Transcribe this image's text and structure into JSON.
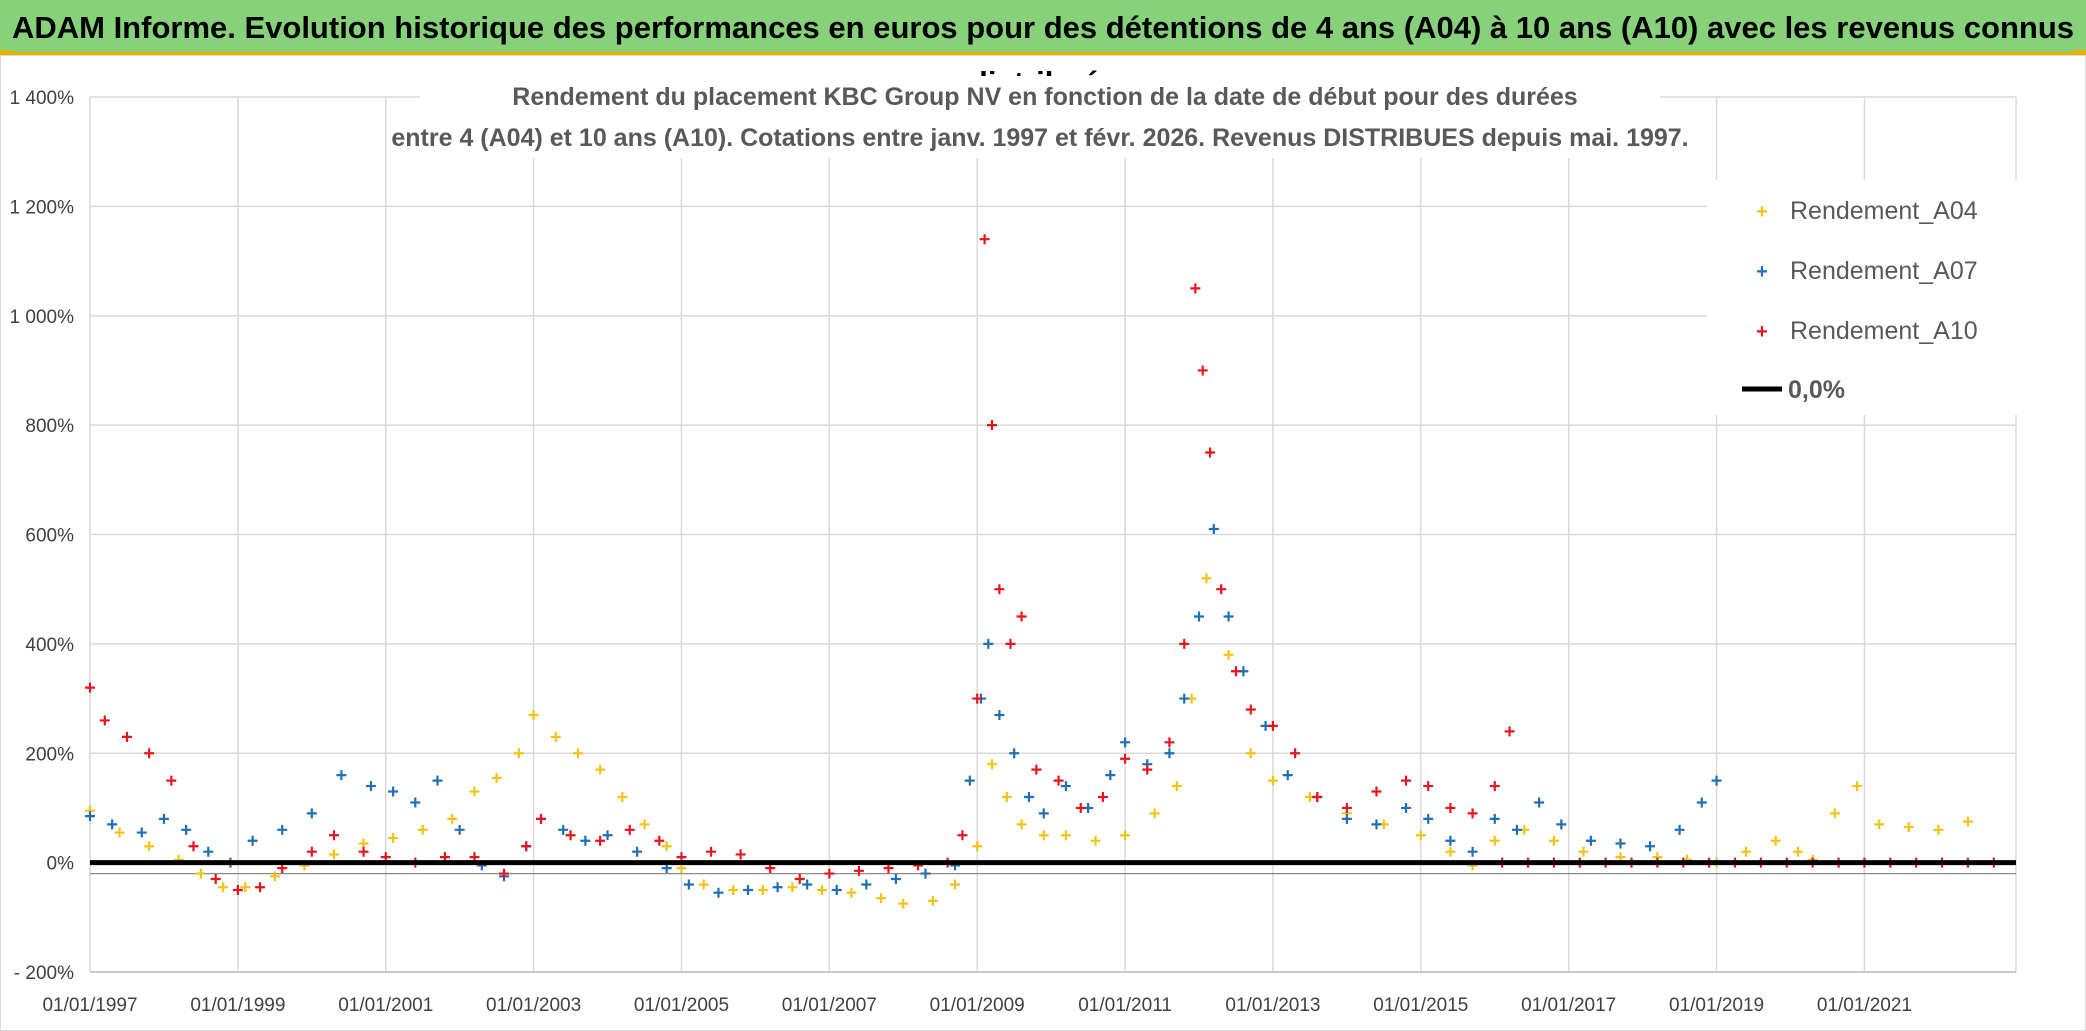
{
  "banner": {
    "title": "ADAM Informe. Evolution historique des performances en euros pour des détentions de 4 ans (A04) à 10 ans (A10) avec les revenus connus distribués"
  },
  "chart_data": {
    "type": "scatter",
    "title_line1": "Rendement du placement KBC Group NV en fonction de la date de début pour des durées",
    "title_line2": "entre 4 (A04) et 10 ans (A10). Cotations entre janv. 1997 et févr. 2026. Revenus DISTRIBUES depuis mai. 1997.",
    "xlabel": "",
    "ylabel": "",
    "xlim": [
      1997.0,
      2023.05
    ],
    "ylim": [
      -200,
      1400
    ],
    "y_ticks": [
      -200,
      0,
      200,
      400,
      600,
      800,
      1000,
      1200,
      1400
    ],
    "y_tick_labels": [
      "- 200%",
      "0%",
      "200%",
      "400%",
      "600%",
      "800%",
      "1 000%",
      "1 200%",
      "1 400%"
    ],
    "x_ticks": [
      1997,
      1999,
      2001,
      2003,
      2005,
      2007,
      2009,
      2011,
      2013,
      2015,
      2017,
      2019,
      2021
    ],
    "x_tick_labels": [
      "01/01/1997",
      "01/01/1999",
      "01/01/2001",
      "01/01/2003",
      "01/01/2005",
      "01/01/2007",
      "01/01/2009",
      "01/01/2011",
      "01/01/2013",
      "01/01/2015",
      "01/01/2017",
      "01/01/2019",
      "01/01/2021"
    ],
    "grid": true,
    "legend_position": "top-right",
    "series": [
      {
        "name": "Rendement_A04",
        "color": "#f5c316",
        "marker": "plus",
        "x": [
          1997.0,
          1997.4,
          1997.8,
          1998.2,
          1998.5,
          1998.8,
          1999.1,
          1999.5,
          1999.9,
          2000.3,
          2000.7,
          2001.1,
          2001.5,
          2001.9,
          2002.2,
          2002.5,
          2002.8,
          2003.0,
          2003.3,
          2003.6,
          2003.9,
          2004.2,
          2004.5,
          2004.8,
          2005.0,
          2005.3,
          2005.7,
          2006.1,
          2006.5,
          2006.9,
          2007.3,
          2007.7,
          2008.0,
          2008.4,
          2008.7,
          2009.0,
          2009.2,
          2009.4,
          2009.6,
          2009.9,
          2010.2,
          2010.6,
          2011.0,
          2011.4,
          2011.7,
          2011.9,
          2012.1,
          2012.4,
          2012.7,
          2013.0,
          2013.5,
          2014.0,
          2014.5,
          2015.0,
          2015.4,
          2015.7,
          2016.0,
          2016.4,
          2016.8,
          2017.2,
          2017.7,
          2018.2,
          2018.6,
          2019.0,
          2019.4,
          2019.8,
          2020.1,
          2020.3,
          2020.6,
          2020.9,
          2021.2,
          2021.6,
          2022.0,
          2022.4
        ],
        "y": [
          95,
          55,
          30,
          5,
          -20,
          -45,
          -45,
          -25,
          -5,
          15,
          35,
          45,
          60,
          80,
          130,
          155,
          200,
          270,
          230,
          200,
          170,
          120,
          70,
          30,
          -10,
          -40,
          -50,
          -50,
          -45,
          -50,
          -55,
          -65,
          -75,
          -70,
          -40,
          30,
          180,
          120,
          70,
          50,
          50,
          40,
          50,
          90,
          140,
          300,
          520,
          380,
          200,
          150,
          120,
          90,
          70,
          50,
          20,
          -5,
          40,
          60,
          40,
          20,
          10,
          10,
          5,
          0,
          20,
          40,
          20,
          5,
          90,
          140,
          70,
          65,
          60,
          75
        ]
      },
      {
        "name": "Rendement_A07",
        "color": "#1f6fb8",
        "marker": "plus",
        "x": [
          1997.0,
          1997.3,
          1997.7,
          1998.0,
          1998.3,
          1998.6,
          1998.9,
          1999.2,
          1999.6,
          2000.0,
          2000.4,
          2000.8,
          2001.1,
          2001.4,
          2001.7,
          2002.0,
          2002.3,
          2002.6,
          2002.9,
          2003.1,
          2003.4,
          2003.7,
          2004.0,
          2004.4,
          2004.8,
          2005.1,
          2005.5,
          2005.9,
          2006.3,
          2006.7,
          2007.1,
          2007.5,
          2007.9,
          2008.3,
          2008.7,
          2008.9,
          2009.05,
          2009.15,
          2009.3,
          2009.5,
          2009.7,
          2009.9,
          2010.2,
          2010.5,
          2010.8,
          2011.0,
          2011.3,
          2011.6,
          2011.8,
          2012.0,
          2012.2,
          2012.4,
          2012.6,
          2012.9,
          2013.2,
          2013.6,
          2014.0,
          2014.4,
          2014.8,
          2015.1,
          2015.4,
          2015.7,
          2016.0,
          2016.3,
          2016.6,
          2016.9,
          2017.3,
          2017.7,
          2018.1,
          2018.5,
          2018.8,
          2019.0
        ],
        "y": [
          85,
          70,
          55,
          80,
          60,
          20,
          0,
          40,
          60,
          90,
          160,
          140,
          130,
          110,
          150,
          60,
          -5,
          -25,
          30,
          80,
          60,
          40,
          50,
          20,
          -10,
          -40,
          -55,
          -50,
          -45,
          -40,
          -50,
          -40,
          -30,
          -20,
          -5,
          150,
          300,
          400,
          270,
          200,
          120,
          90,
          140,
          100,
          160,
          220,
          180,
          200,
          300,
          450,
          610,
          450,
          350,
          250,
          160,
          120,
          80,
          70,
          100,
          80,
          40,
          20,
          80,
          60,
          110,
          70,
          40,
          35,
          30,
          60,
          110,
          150
        ]
      },
      {
        "name": "Rendement_A10",
        "color": "#e8141c",
        "marker": "plus",
        "x": [
          1997.0,
          1997.2,
          1997.5,
          1997.8,
          1998.1,
          1998.4,
          1998.7,
          1999.0,
          1999.3,
          1999.6,
          2000.0,
          2000.3,
          2000.7,
          2001.0,
          2001.4,
          2001.8,
          2002.2,
          2002.6,
          2002.9,
          2003.1,
          2003.5,
          2003.9,
          2004.3,
          2004.7,
          2005.0,
          2005.4,
          2005.8,
          2006.2,
          2006.6,
          2007.0,
          2007.4,
          2007.8,
          2008.2,
          2008.6,
          2008.8,
          2009.0,
          2009.1,
          2009.2,
          2009.3,
          2009.45,
          2009.6,
          2009.8,
          2010.1,
          2010.4,
          2010.7,
          2011.0,
          2011.3,
          2011.6,
          2011.8,
          2011.95,
          2012.05,
          2012.15,
          2012.3,
          2012.5,
          2012.7,
          2013.0,
          2013.3,
          2013.6,
          2014.0,
          2014.4,
          2014.8,
          2015.1,
          2015.4,
          2015.7,
          2016.0,
          2016.2
        ],
        "y": [
          320,
          260,
          230,
          200,
          150,
          30,
          -30,
          -50,
          -45,
          -10,
          20,
          50,
          20,
          10,
          0,
          10,
          10,
          -20,
          30,
          80,
          50,
          40,
          60,
          40,
          10,
          20,
          15,
          -10,
          -30,
          -20,
          -15,
          -10,
          -5,
          0,
          50,
          300,
          1140,
          800,
          500,
          400,
          450,
          170,
          150,
          100,
          120,
          190,
          170,
          220,
          400,
          1050,
          900,
          750,
          500,
          350,
          280,
          250,
          200,
          120,
          100,
          130,
          150,
          140,
          100,
          90,
          140,
          240
        ]
      }
    ],
    "zero_markers": {
      "series": "Rendement_A10",
      "value": 0,
      "x_start": 2016.1,
      "x_end": 2023.05
    },
    "reference_line": {
      "name": "0,0%",
      "value": 0,
      "color": "#000000"
    }
  }
}
